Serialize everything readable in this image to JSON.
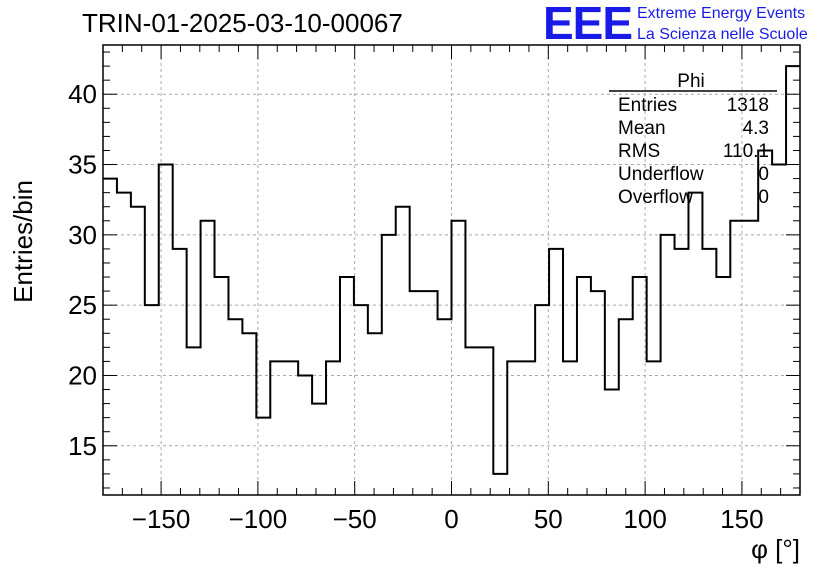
{
  "title": "TRIN-01-2025-03-10-00067",
  "logo": {
    "mark": "EEE",
    "line1": "Extreme Energy Events",
    "line2": "La Scienza nelle Scuole",
    "color": "#1a1ae6"
  },
  "stats": {
    "name": "Phi",
    "rows": [
      {
        "label": "Entries",
        "value": "1318"
      },
      {
        "label": "Mean",
        "value": "4.3"
      },
      {
        "label": "RMS",
        "value": "110.1"
      },
      {
        "label": "Underflow",
        "value": "0"
      },
      {
        "label": "Overflow",
        "value": "0"
      }
    ]
  },
  "chart_data": {
    "type": "histogram",
    "xlabel": "φ [°]",
    "ylabel": "Entries/bin",
    "xlim": [
      -180,
      180
    ],
    "ylim": [
      11.5,
      43.5
    ],
    "bin_width": 7.2,
    "xticks": [
      -150,
      -100,
      -50,
      0,
      50,
      100,
      150
    ],
    "yticks": [
      15,
      20,
      25,
      30,
      35,
      40
    ],
    "grid": true,
    "values": [
      34,
      33,
      32,
      25,
      35,
      29,
      22,
      31,
      27,
      24,
      23,
      17,
      21,
      21,
      20,
      18,
      21,
      27,
      25,
      23,
      30,
      32,
      26,
      26,
      24,
      31,
      22,
      22,
      13,
      21,
      21,
      25,
      29,
      21,
      27,
      26,
      19,
      24,
      27,
      21,
      30,
      29,
      33,
      29,
      27,
      31,
      31,
      36,
      35,
      42
    ]
  }
}
